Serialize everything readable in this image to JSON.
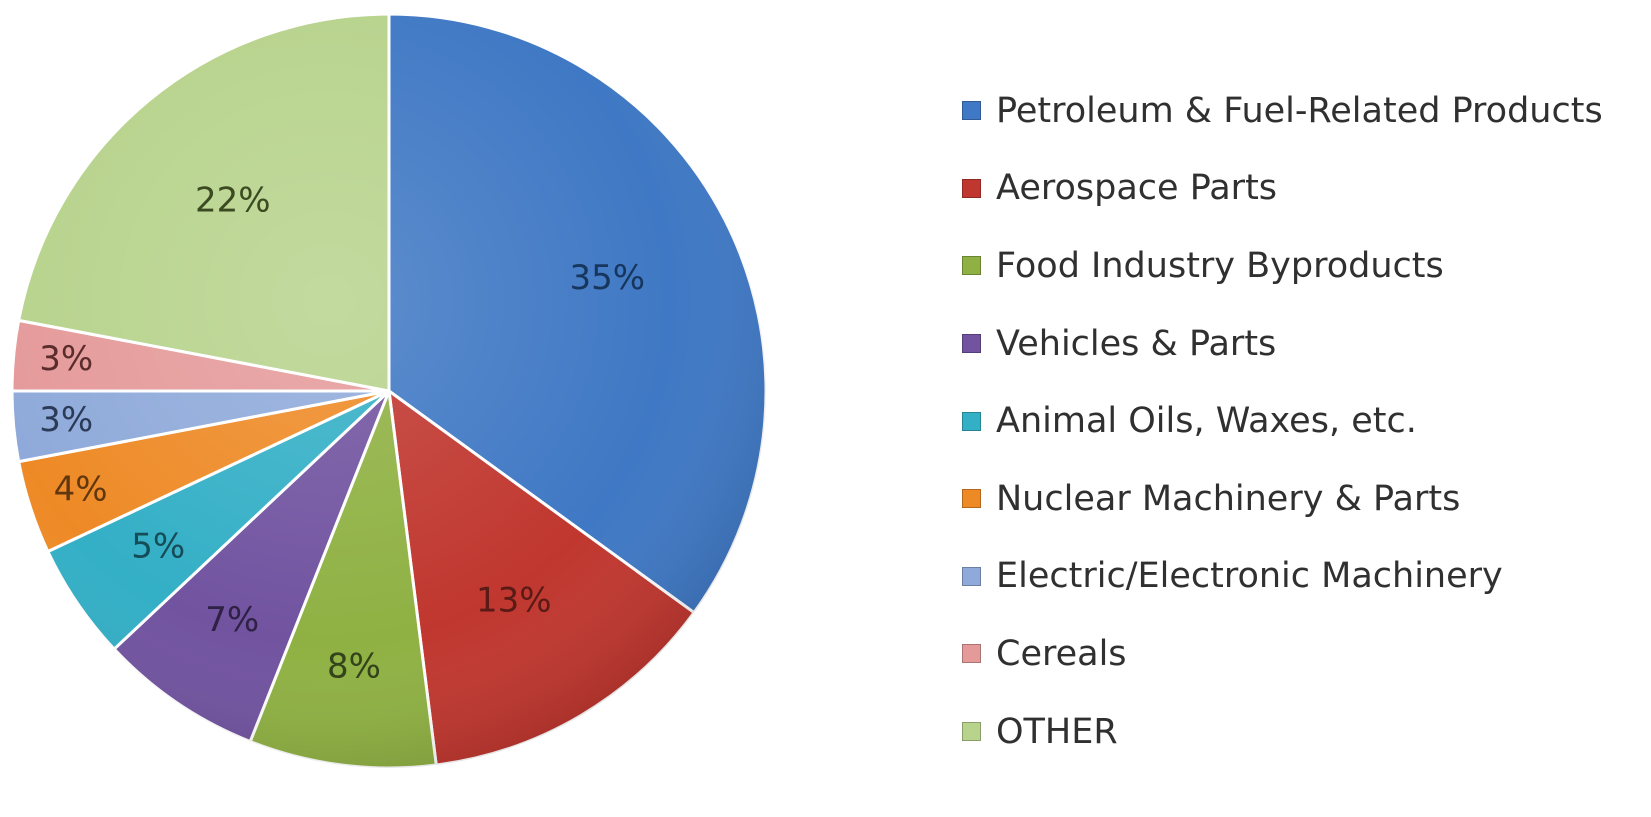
{
  "chart_data": {
    "type": "pie",
    "title": "",
    "legend_position": "right",
    "slices": [
      {
        "label": "Petroleum & Fuel-Related Products",
        "value": 35,
        "value_label": "35%",
        "color": "#3F78C4",
        "text_color": "#17365D"
      },
      {
        "label": "Aerospace Parts",
        "value": 13,
        "value_label": "13%",
        "color": "#C0372F",
        "text_color": "#5A1A16"
      },
      {
        "label": "Food Industry Byproducts",
        "value": 8,
        "value_label": "8%",
        "color": "#8FB143",
        "text_color": "#33431A"
      },
      {
        "label": "Vehicles & Parts",
        "value": 7,
        "value_label": "7%",
        "color": "#7153A0",
        "text_color": "#2E2144"
      },
      {
        "label": "Animal Oils, Waxes, etc.",
        "value": 5,
        "value_label": "5%",
        "color": "#33AFC6",
        "text_color": "#164C57"
      },
      {
        "label": "Nuclear Machinery & Parts",
        "value": 4,
        "value_label": "4%",
        "color": "#EE8A26",
        "text_color": "#613710"
      },
      {
        "label": "Electric/Electronic Machinery",
        "value": 3,
        "value_label": "3%",
        "color": "#8FAADA",
        "text_color": "#2B3A57"
      },
      {
        "label": "Cereals",
        "value": 3,
        "value_label": "3%",
        "color": "#E59A9A",
        "text_color": "#5A2C2C"
      },
      {
        "label": "OTHER",
        "value": 22,
        "value_label": "22%",
        "color": "#B7D38C",
        "text_color": "#3C4A22"
      }
    ]
  }
}
